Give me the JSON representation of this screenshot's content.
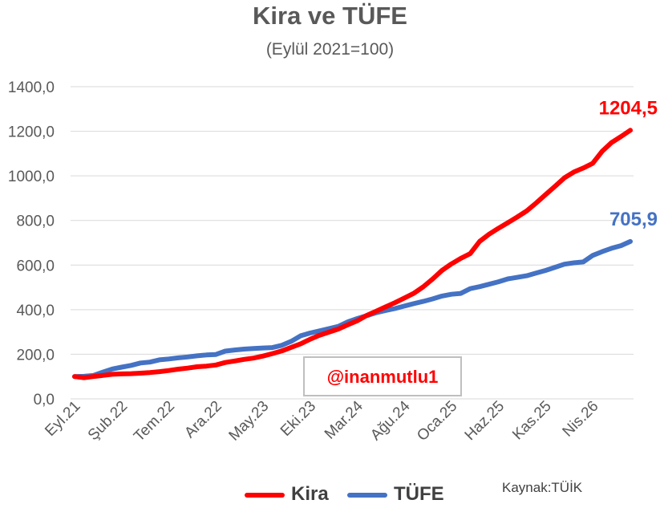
{
  "chart_data": {
    "type": "line",
    "title": "Kira ve TÜFE",
    "subtitle": "(Eylül 2021=100)",
    "ylim": [
      0,
      1400
    ],
    "yticks": [
      "0,0",
      "200,0",
      "400,0",
      "600,0",
      "800,0",
      "1000,0",
      "1200,0",
      "1400,0"
    ],
    "x_labels": [
      "Eyl.21",
      "Şub.22",
      "Tem.22",
      "Ara.22",
      "May.23",
      "Eki.23",
      "Mar.24",
      "Ağu.24",
      "Oca.25",
      "Haz.25",
      "Kas.25",
      "Nis.26"
    ],
    "grid": true,
    "legend_position": "bottom",
    "series": [
      {
        "name": "Kira",
        "color": "#ff0000",
        "end_label": "1204,5",
        "values": [
          100,
          95,
          100,
          105,
          110,
          112,
          113,
          115,
          118,
          122,
          127,
          133,
          138,
          144,
          147,
          152,
          163,
          170,
          177,
          183,
          192,
          203,
          215,
          231,
          247,
          267,
          285,
          299,
          313,
          332,
          350,
          374,
          393,
          412,
          431,
          452,
          473,
          502,
          537,
          576,
          605,
          630,
          651,
          706,
          738,
          765,
          790,
          816,
          843,
          878,
          916,
          953,
          991,
          1017,
          1035,
          1056,
          1110,
          1149,
          1176,
          1204.5
        ]
      },
      {
        "name": "TÜFE",
        "color": "#4472c4",
        "end_label": "705,9",
        "values": [
          100,
          101,
          105,
          120,
          134,
          142,
          150,
          161,
          165,
          175,
          179,
          184,
          188,
          193,
          197,
          199,
          214,
          219,
          223,
          226,
          228,
          230,
          240,
          258,
          283,
          295,
          305,
          315,
          325,
          345,
          360,
          373,
          386,
          396,
          405,
          416,
          427,
          437,
          448,
          461,
          469,
          473,
          494,
          503,
          514,
          525,
          538,
          545,
          552,
          564,
          576,
          590,
          604,
          610,
          614,
          643,
          660,
          675,
          687,
          705.9
        ]
      }
    ]
  },
  "watermark": "@inanmutlu1",
  "source_note": "Kaynak:TÜİK"
}
